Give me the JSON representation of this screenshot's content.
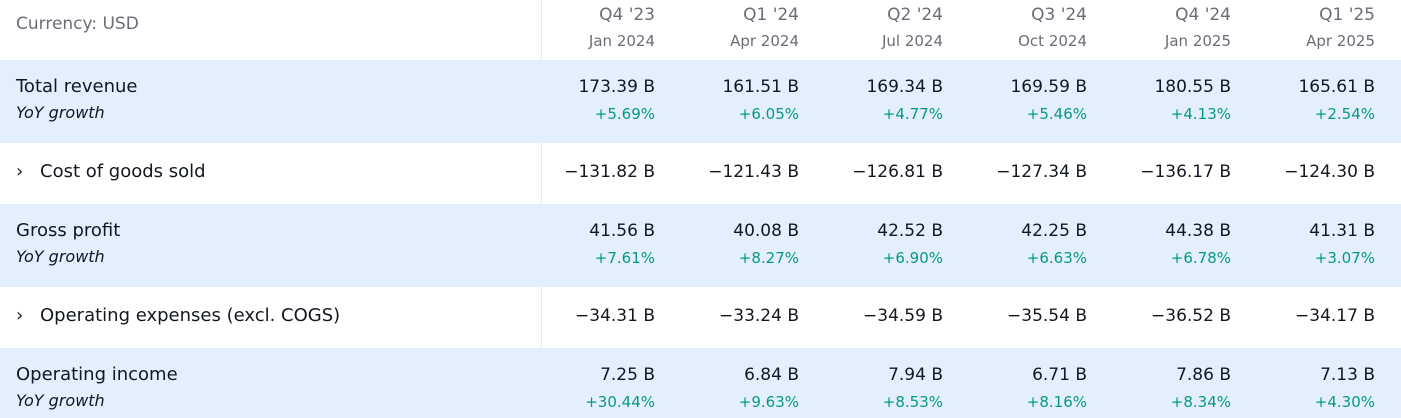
{
  "header": {
    "currency": "Currency: USD",
    "periods": [
      {
        "quarter": "Q4 '23",
        "date": "Jan 2024"
      },
      {
        "quarter": "Q1 '24",
        "date": "Apr 2024"
      },
      {
        "quarter": "Q2 '24",
        "date": "Jul 2024"
      },
      {
        "quarter": "Q3 '24",
        "date": "Oct 2024"
      },
      {
        "quarter": "Q4 '24",
        "date": "Jan 2025"
      },
      {
        "quarter": "Q1 '25",
        "date": "Apr 2025"
      }
    ]
  },
  "rows": [
    {
      "label": "Total revenue",
      "sublabel": "YoY growth",
      "expandable": false,
      "values": [
        "173.39 B",
        "161.51 B",
        "169.34 B",
        "169.59 B",
        "180.55 B",
        "165.61 B"
      ],
      "growth": [
        "+5.69%",
        "+6.05%",
        "+4.77%",
        "+5.46%",
        "+4.13%",
        "+2.54%"
      ]
    },
    {
      "label": "Cost of goods sold",
      "expandable": true,
      "chevron": "›",
      "values": [
        "−131.82 B",
        "−121.43 B",
        "−126.81 B",
        "−127.34 B",
        "−136.17 B",
        "−124.30 B"
      ]
    },
    {
      "label": "Gross profit",
      "sublabel": "YoY growth",
      "expandable": false,
      "values": [
        "41.56 B",
        "40.08 B",
        "42.52 B",
        "42.25 B",
        "44.38 B",
        "41.31 B"
      ],
      "growth": [
        "+7.61%",
        "+8.27%",
        "+6.90%",
        "+6.63%",
        "+6.78%",
        "+3.07%"
      ]
    },
    {
      "label": "Operating expenses (excl. COGS)",
      "expandable": true,
      "chevron": "›",
      "values": [
        "−34.31 B",
        "−33.24 B",
        "−34.59 B",
        "−35.54 B",
        "−36.52 B",
        "−34.17 B"
      ]
    },
    {
      "label": "Operating income",
      "sublabel": "YoY growth",
      "expandable": false,
      "values": [
        "7.25 B",
        "6.84 B",
        "7.94 B",
        "6.71 B",
        "7.86 B",
        "7.13 B"
      ],
      "growth": [
        "+30.44%",
        "+9.63%",
        "+8.53%",
        "+8.16%",
        "+8.34%",
        "+4.30%"
      ]
    }
  ],
  "colors": {
    "highlight_row": "#e3effd",
    "positive": "#089981",
    "muted_text": "#6a6d78",
    "text": "#131722"
  }
}
